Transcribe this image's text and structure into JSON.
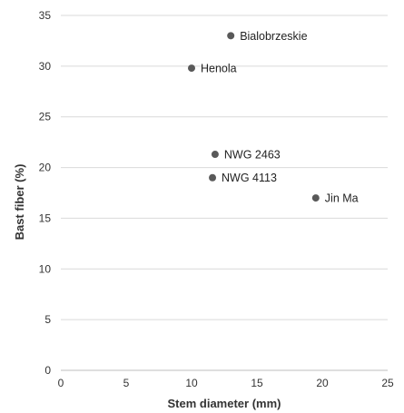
{
  "chart_data": {
    "type": "scatter",
    "title": "",
    "xlabel": "Stem diameter (mm)",
    "ylabel": "Bast fiber (%)",
    "xlim": [
      0,
      25
    ],
    "ylim": [
      0,
      35
    ],
    "xticks": [
      0,
      5,
      10,
      15,
      20,
      25
    ],
    "yticks": [
      0,
      5,
      10,
      15,
      20,
      25,
      30,
      35
    ],
    "grid": true,
    "legend": "none",
    "marker_color": "#595959",
    "grid_color": "#d9d9d9",
    "points": [
      {
        "label": "Bialobrzeskie",
        "x": 13,
        "y": 33
      },
      {
        "label": "Henola",
        "x": 10,
        "y": 29.8
      },
      {
        "label": "NWG 2463",
        "x": 11.8,
        "y": 21.3
      },
      {
        "label": "NWG 4113",
        "x": 11.6,
        "y": 19
      },
      {
        "label": "Jin Ma",
        "x": 19.5,
        "y": 17
      }
    ]
  }
}
